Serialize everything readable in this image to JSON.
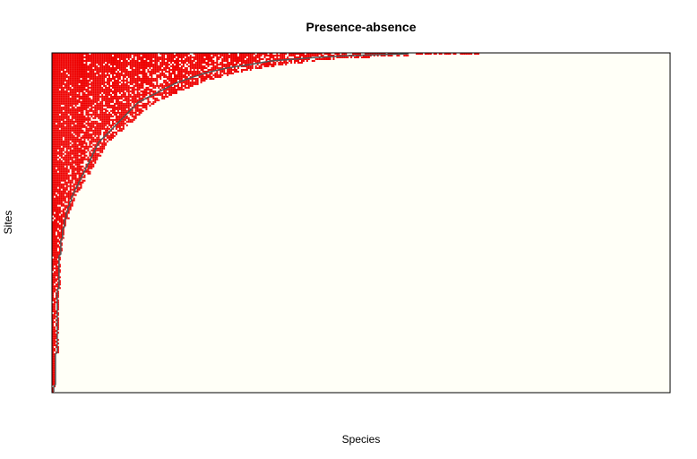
{
  "chart_data": {
    "type": "heatmap",
    "title": "Presence-absence",
    "xlabel": "Species",
    "ylabel": "Sites",
    "rows": 190,
    "cols": 350,
    "colors": {
      "present": "#ee0000",
      "absent": "#fffff7",
      "frame": "#000000",
      "curve": "#555555"
    },
    "row_richness": [
      202,
      168,
      150,
      137,
      124,
      118,
      112,
      105,
      99,
      94,
      90,
      86,
      83,
      80,
      77,
      74,
      71,
      69,
      67,
      65,
      63,
      61,
      59,
      57,
      55,
      53,
      51,
      49,
      48,
      47,
      46,
      45,
      44,
      43,
      42,
      41,
      40,
      39,
      38,
      37,
      36,
      35,
      34,
      33,
      32,
      31,
      30,
      29,
      28,
      27,
      26,
      26,
      25,
      25,
      24,
      24,
      23,
      23,
      22,
      22,
      21,
      21,
      20,
      20,
      19,
      19,
      18,
      18,
      17,
      17,
      16,
      16,
      15,
      15,
      14,
      14,
      13,
      13,
      12,
      12,
      11,
      11,
      11,
      10,
      10,
      10,
      9,
      9,
      9,
      8,
      8,
      8,
      8,
      7,
      7,
      7,
      7,
      7,
      6,
      6,
      6,
      6,
      6,
      6,
      5,
      5,
      5,
      5,
      5,
      5,
      5,
      5,
      5,
      4,
      4,
      4,
      4,
      4,
      4,
      4,
      4,
      4,
      4,
      4,
      4,
      4,
      4,
      4,
      4,
      4,
      4,
      4,
      3,
      3,
      3,
      3,
      3,
      3,
      3,
      3,
      3,
      3,
      3,
      3,
      3,
      3,
      3,
      3,
      3,
      3,
      3,
      3,
      3,
      3,
      3,
      3,
      3,
      3,
      3,
      3,
      3,
      3,
      3,
      3,
      3,
      3,
      3,
      3,
      2,
      2,
      2,
      2,
      2,
      2,
      2,
      2,
      2,
      2,
      2,
      2,
      2,
      2,
      2,
      2,
      2,
      2,
      1,
      1,
      1,
      1
    ],
    "seed": 7
  }
}
